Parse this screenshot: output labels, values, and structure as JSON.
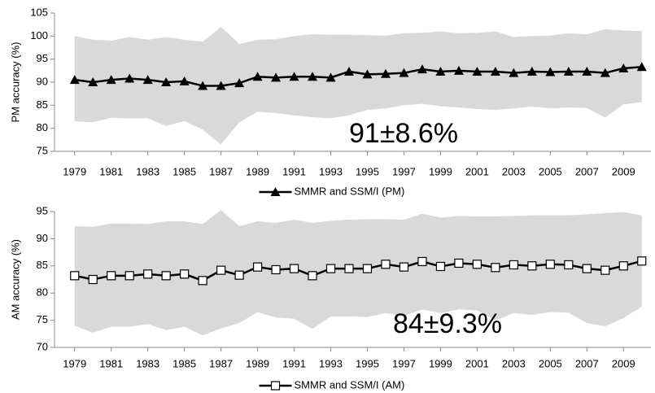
{
  "chart_data": [
    {
      "type": "line",
      "ylabel": "PM accuracy (%)",
      "annotation": "91±8.6%",
      "x": [
        1979,
        1980,
        1981,
        1982,
        1983,
        1984,
        1985,
        1986,
        1987,
        1988,
        1989,
        1990,
        1991,
        1992,
        1993,
        1994,
        1995,
        1996,
        1997,
        1998,
        1999,
        2000,
        2001,
        2002,
        2003,
        2004,
        2005,
        2006,
        2007,
        2008,
        2009,
        2010
      ],
      "series": [
        {
          "name": "SMMR and SSM/I (PM)",
          "color": "#000000",
          "marker": "triangle",
          "values": [
            90.5,
            90,
            90.5,
            90.8,
            90.5,
            90,
            90.2,
            89.2,
            89.2,
            89.8,
            91.2,
            91,
            91.2,
            91.2,
            91,
            92.3,
            91.7,
            91.8,
            92,
            92.8,
            92.3,
            92.5,
            92.3,
            92.3,
            92,
            92.3,
            92.2,
            92.3,
            92.3,
            92,
            93,
            93.3
          ]
        }
      ],
      "band": {
        "color": "#d9d9d9",
        "upper": [
          100,
          99.2,
          99,
          99.8,
          99.2,
          99.8,
          99.2,
          98.8,
          102,
          98.3,
          99.2,
          99.3,
          100,
          100.4,
          100.3,
          100.3,
          100.2,
          100.1,
          100.6,
          100.7,
          101,
          100.6,
          100.7,
          101,
          99.8,
          100,
          100.1,
          100.6,
          100.4,
          101.5,
          101.2,
          101.1
        ],
        "lower": [
          81.5,
          81.3,
          82.3,
          82.1,
          82.2,
          80.5,
          81.6,
          79.7,
          76.5,
          81.3,
          83.6,
          83.3,
          82.8,
          82.4,
          82.2,
          82.8,
          84,
          84.3,
          85,
          85.3,
          84.8,
          84.5,
          84.2,
          84,
          84.3,
          84.7,
          84.3,
          84.5,
          84.4,
          82.3,
          85.2,
          85.7
        ]
      },
      "xlim": [
        1977.9,
        2010.5
      ],
      "xticks": [
        1979,
        1981,
        1983,
        1985,
        1987,
        1989,
        1991,
        1993,
        1995,
        1997,
        1999,
        2001,
        2003,
        2005,
        2007,
        2009
      ],
      "ylim": [
        75,
        105
      ],
      "yticks": [
        75,
        80,
        85,
        90,
        95,
        100,
        105
      ],
      "legend": "bottom"
    },
    {
      "type": "line",
      "ylabel": "AM accuracy (%)",
      "annotation": "84±9.3%",
      "x": [
        1979,
        1980,
        1981,
        1982,
        1983,
        1984,
        1985,
        1986,
        1987,
        1988,
        1989,
        1990,
        1991,
        1992,
        1993,
        1994,
        1995,
        1996,
        1997,
        1998,
        1999,
        2000,
        2001,
        2002,
        2003,
        2004,
        2005,
        2006,
        2007,
        2008,
        2009,
        2010
      ],
      "series": [
        {
          "name": "SMMR and SSM/I (AM)",
          "color": "#000000",
          "marker": "square",
          "values": [
            83.2,
            82.5,
            83.2,
            83.2,
            83.5,
            83.2,
            83.5,
            82.3,
            84.2,
            83.3,
            84.8,
            84.3,
            84.5,
            83.2,
            84.5,
            84.5,
            84.5,
            85.3,
            84.8,
            85.8,
            84.9,
            85.5,
            85.3,
            84.7,
            85.2,
            85,
            85.3,
            85.2,
            84.5,
            84.2,
            85,
            85.9
          ]
        }
      ],
      "band": {
        "color": "#d9d9d9",
        "upper": [
          92.3,
          92.2,
          92.8,
          92.8,
          92.7,
          93.2,
          93.2,
          92.7,
          95.3,
          92.3,
          93.2,
          92.9,
          93.5,
          92.9,
          93.3,
          93.5,
          93.6,
          93.6,
          93.5,
          94.6,
          93.9,
          94.2,
          94.1,
          94.1,
          94.2,
          94.3,
          94.3,
          94.3,
          94.5,
          94.7,
          94.9,
          94.3
        ],
        "lower": [
          74,
          72.7,
          73.8,
          73.8,
          74.3,
          73.2,
          73.8,
          72.2,
          73.5,
          74.5,
          76.5,
          75.5,
          75.3,
          73.4,
          75.7,
          75.7,
          75.6,
          76.3,
          75.8,
          77,
          76.3,
          77,
          76.8,
          75,
          76.3,
          76,
          76.5,
          76.4,
          74.5,
          73.9,
          75.4,
          77.5
        ]
      },
      "xlim": [
        1977.9,
        2010.5
      ],
      "xticks": [
        1979,
        1981,
        1983,
        1985,
        1987,
        1989,
        1991,
        1993,
        1995,
        1997,
        1999,
        2001,
        2003,
        2005,
        2007,
        2009
      ],
      "ylim": [
        70,
        95
      ],
      "yticks": [
        70,
        75,
        80,
        85,
        90,
        95
      ],
      "legend": "bottom"
    }
  ]
}
